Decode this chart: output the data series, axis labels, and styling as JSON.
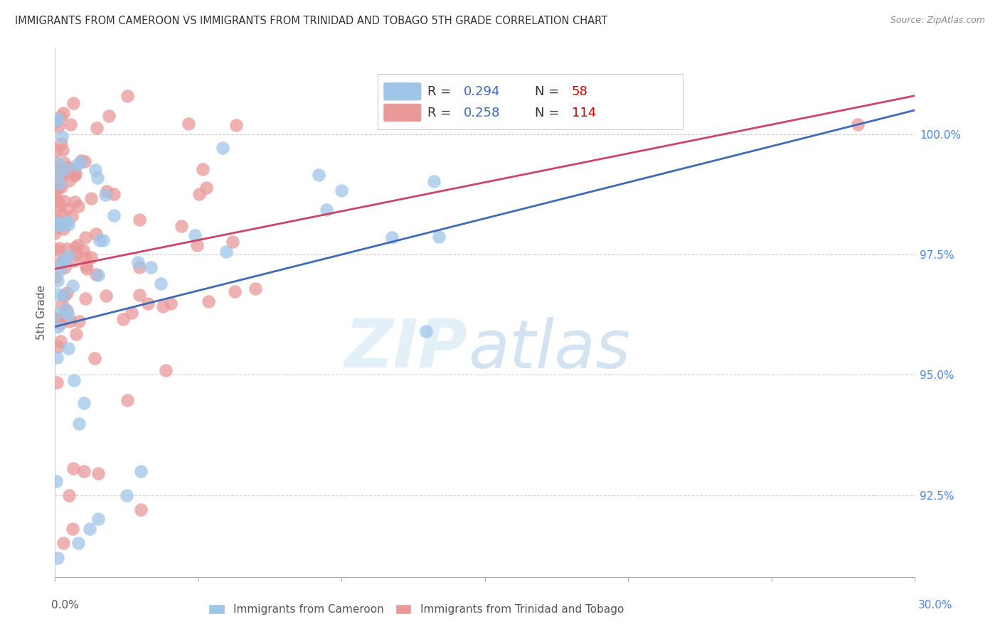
{
  "title": "IMMIGRANTS FROM CAMEROON VS IMMIGRANTS FROM TRINIDAD AND TOBAGO 5TH GRADE CORRELATION CHART",
  "source": "Source: ZipAtlas.com",
  "ylabel": "5th Grade",
  "xmin": 0.0,
  "xmax": 30.0,
  "ymin": 90.8,
  "ymax": 101.8,
  "ytick_vals": [
    92.5,
    95.0,
    97.5,
    100.0
  ],
  "ytick_labels": [
    "92.5%",
    "95.0%",
    "97.5%",
    "100.0%"
  ],
  "blue_color": "#9fc5e8",
  "pink_color": "#ea9999",
  "blue_edge_color": "#6fa8dc",
  "pink_edge_color": "#e06666",
  "blue_line_color": "#3d6bb5",
  "pink_line_color": "#cc4466",
  "legend_r_color": "#3d6bb5",
  "legend_n_color": "#cc0000",
  "blue_line_x0": 0.0,
  "blue_line_y0": 96.0,
  "blue_line_x1": 30.0,
  "blue_line_y1": 100.5,
  "pink_line_x0": 0.0,
  "pink_line_y0": 97.2,
  "pink_line_x1": 30.0,
  "pink_line_y1": 100.8,
  "watermark_zip_color": "#c8ddf0",
  "watermark_atlas_color": "#b8cce4"
}
